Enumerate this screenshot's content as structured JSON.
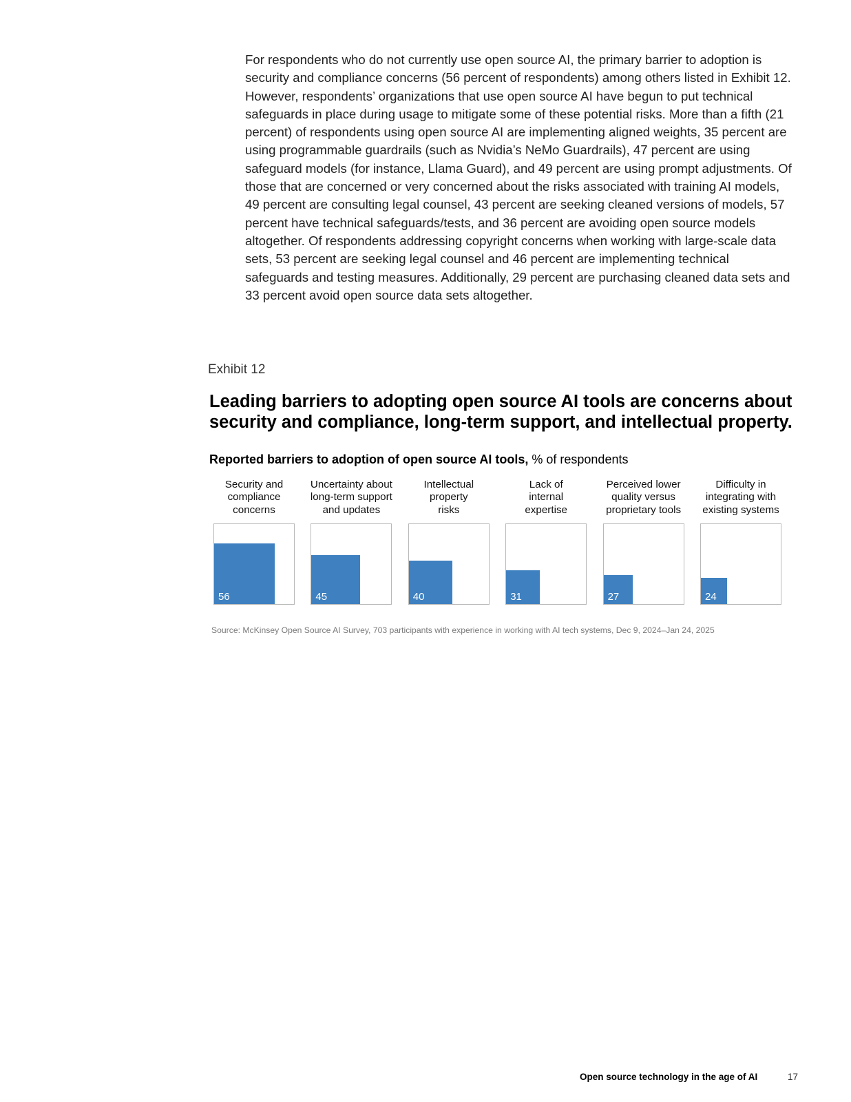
{
  "body": {
    "paragraph": "For respondents who do not currently use open source AI, the primary barrier to adoption is security and compliance concerns (56 percent of respondents) among others listed in Exhibit 12. However, respondents’ organizations that use open source AI have begun to put technical safeguards in place during usage to mitigate some of these potential risks. More than a fifth (21 percent) of respondents using open source AI are implementing aligned weights, 35 percent are using programmable guardrails (such as Nvidia’s NeMo Guardrails), 47 percent are using safeguard models (for instance, Llama Guard), and 49 percent are using prompt adjustments. Of those that are concerned or very concerned about the risks associated with training AI models, 49 percent are consulting legal counsel, 43 percent are seeking cleaned versions of models, 57 percent have technical safeguards/tests, and 36 percent are avoiding open source models altogether. Of respondents addressing copyright concerns when working with large-scale data sets, 53 percent are seeking legal counsel and 46 percent are implementing technical safeguards and testing measures. Additionally, 29 percent are purchasing cleaned data sets and 33 percent avoid open source data sets altogether."
  },
  "exhibit": {
    "label": "Exhibit 12",
    "title": "Leading barriers to adopting open source AI tools are concerns about security and compliance, long-term support, and intellectual property.",
    "subtitle_bold": "Reported barriers to adoption of open source AI tools,",
    "subtitle_regular": " % of respondents",
    "source": "Source: McKinsey Open Source AI Survey, 703 participants with experience in working with AI tech systems, Dec 9, 2024–Jan 24, 2025"
  },
  "chart_data": {
    "type": "bar",
    "categories": [
      "Security and compliance concerns",
      "Uncertainty about long-term support and updates",
      "Intellectual property risks",
      "Lack of internal expertise",
      "Perceived lower quality versus proprietary tools",
      "Difficulty in integrating with existing systems"
    ],
    "category_lines": [
      [
        "Security and",
        "compliance",
        "concerns"
      ],
      [
        "Uncertainty about",
        "long-term support",
        "and updates"
      ],
      [
        "Intellectual",
        "property",
        "risks"
      ],
      [
        "Lack of",
        "internal",
        "expertise"
      ],
      [
        "Perceived lower",
        "quality versus",
        "proprietary tools"
      ],
      [
        "Difficulty in",
        "integrating with",
        "existing systems"
      ]
    ],
    "values": [
      56,
      45,
      40,
      31,
      27,
      24
    ],
    "title": "Reported barriers to adoption of open source AI tools",
    "ylabel": "% of respondents",
    "ylim": [
      0,
      100
    ],
    "bar_color": "#3e80c0",
    "grid": false
  },
  "footer": {
    "title": "Open source technology in the age of AI",
    "page": "17"
  }
}
